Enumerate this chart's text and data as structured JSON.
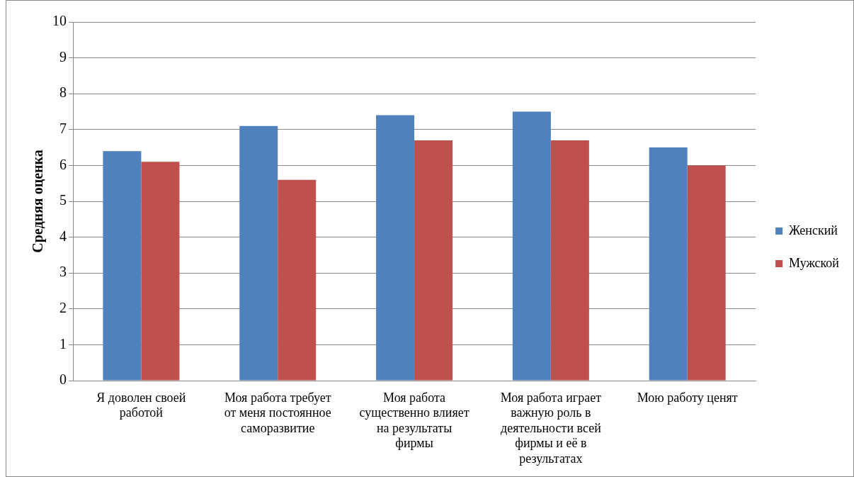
{
  "chart_data": {
    "type": "bar",
    "ylabel": "Средняя оценка",
    "categories": [
      "Я доволен своей работой",
      "Моя работа требует от меня постоянное саморазвитие",
      "Моя работа существенно влияет на результаты фирмы",
      "Моя работа играет важную роль в деятельности всей фирмы и её в результатах",
      "Мою работу ценят"
    ],
    "series": [
      {
        "name": "Женский",
        "color": "#4f81bd",
        "values": [
          6.4,
          7.1,
          7.4,
          7.5,
          6.5
        ]
      },
      {
        "name": "Мужской",
        "color": "#c0504d",
        "values": [
          6.1,
          5.6,
          6.7,
          6.7,
          6.0
        ]
      }
    ],
    "ylim": [
      0,
      10
    ],
    "yticks": [
      0,
      1,
      2,
      3,
      4,
      5,
      6,
      7,
      8,
      9,
      10
    ],
    "grid": "y",
    "legend": "right"
  }
}
